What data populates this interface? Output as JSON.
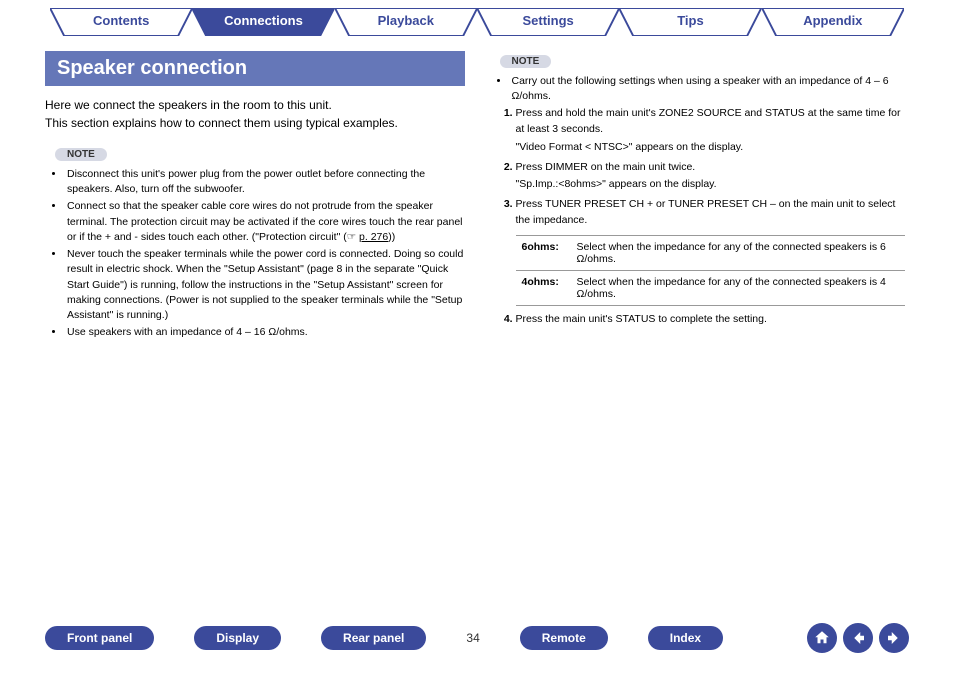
{
  "tabs": [
    {
      "label": "Contents",
      "active": false
    },
    {
      "label": "Connections",
      "active": true
    },
    {
      "label": "Playback",
      "active": false
    },
    {
      "label": "Settings",
      "active": false
    },
    {
      "label": "Tips",
      "active": false
    },
    {
      "label": "Appendix",
      "active": false
    }
  ],
  "heading": "Speaker connection",
  "intro_line1": "Here we connect the speakers in the room to this unit.",
  "intro_line2": "This section explains how to connect them using typical examples.",
  "note_label": "NOTE",
  "left_notes": [
    "Disconnect this unit's power plug from the power outlet before connecting the speakers. Also, turn off the subwoofer.",
    "Connect so that the speaker cable core wires do not protrude from the speaker terminal. The protection circuit may be activated if the core wires touch the rear panel or if the + and - sides touch each other. (\"Protection circuit\" (☞ p. 276))",
    "Never touch the speaker terminals while the power cord is connected. Doing so could result in electric shock. When the \"Setup Assistant\" (page 8 in the separate \"Quick Start Guide\") is running, follow the instructions in the \"Setup Assistant\" screen for making connections. (Power is not supplied to the speaker terminals while the \"Setup Assistant\" is running.)",
    "Use speakers with an impedance of 4 – 16 Ω/ohms."
  ],
  "right_note_intro": "Carry out the following settings when using a speaker with an impedance of 4 – 6 Ω/ohms.",
  "steps": [
    {
      "text": "Press and hold the main unit's ZONE2 SOURCE and STATUS at the same time for at least 3 seconds.",
      "sub": "\"Video Format < NTSC>\" appears on the display."
    },
    {
      "text": "Press DIMMER on the main unit twice.",
      "sub": "\"Sp.Imp.:<8ohms>\" appears on the display."
    },
    {
      "text": "Press TUNER PRESET CH + or TUNER PRESET CH – on the main unit to select the impedance."
    }
  ],
  "impedance_table": [
    {
      "label": "6ohms:",
      "desc": "Select when the impedance for any of the connected speakers is 6 Ω/ohms."
    },
    {
      "label": "4ohms:",
      "desc": "Select when the impedance for any of the connected speakers is 4 Ω/ohms."
    }
  ],
  "step4": "Press the main unit's STATUS to complete the setting.",
  "footer_links": [
    "Front panel",
    "Display",
    "Rear panel"
  ],
  "page_number": "34",
  "footer_links2": [
    "Remote",
    "Index"
  ],
  "colors": {
    "primary": "#3b4a9b",
    "heading_bg": "#6577b8",
    "tab_border": "#3b4a9b",
    "note_bg": "#d6d9e4"
  }
}
